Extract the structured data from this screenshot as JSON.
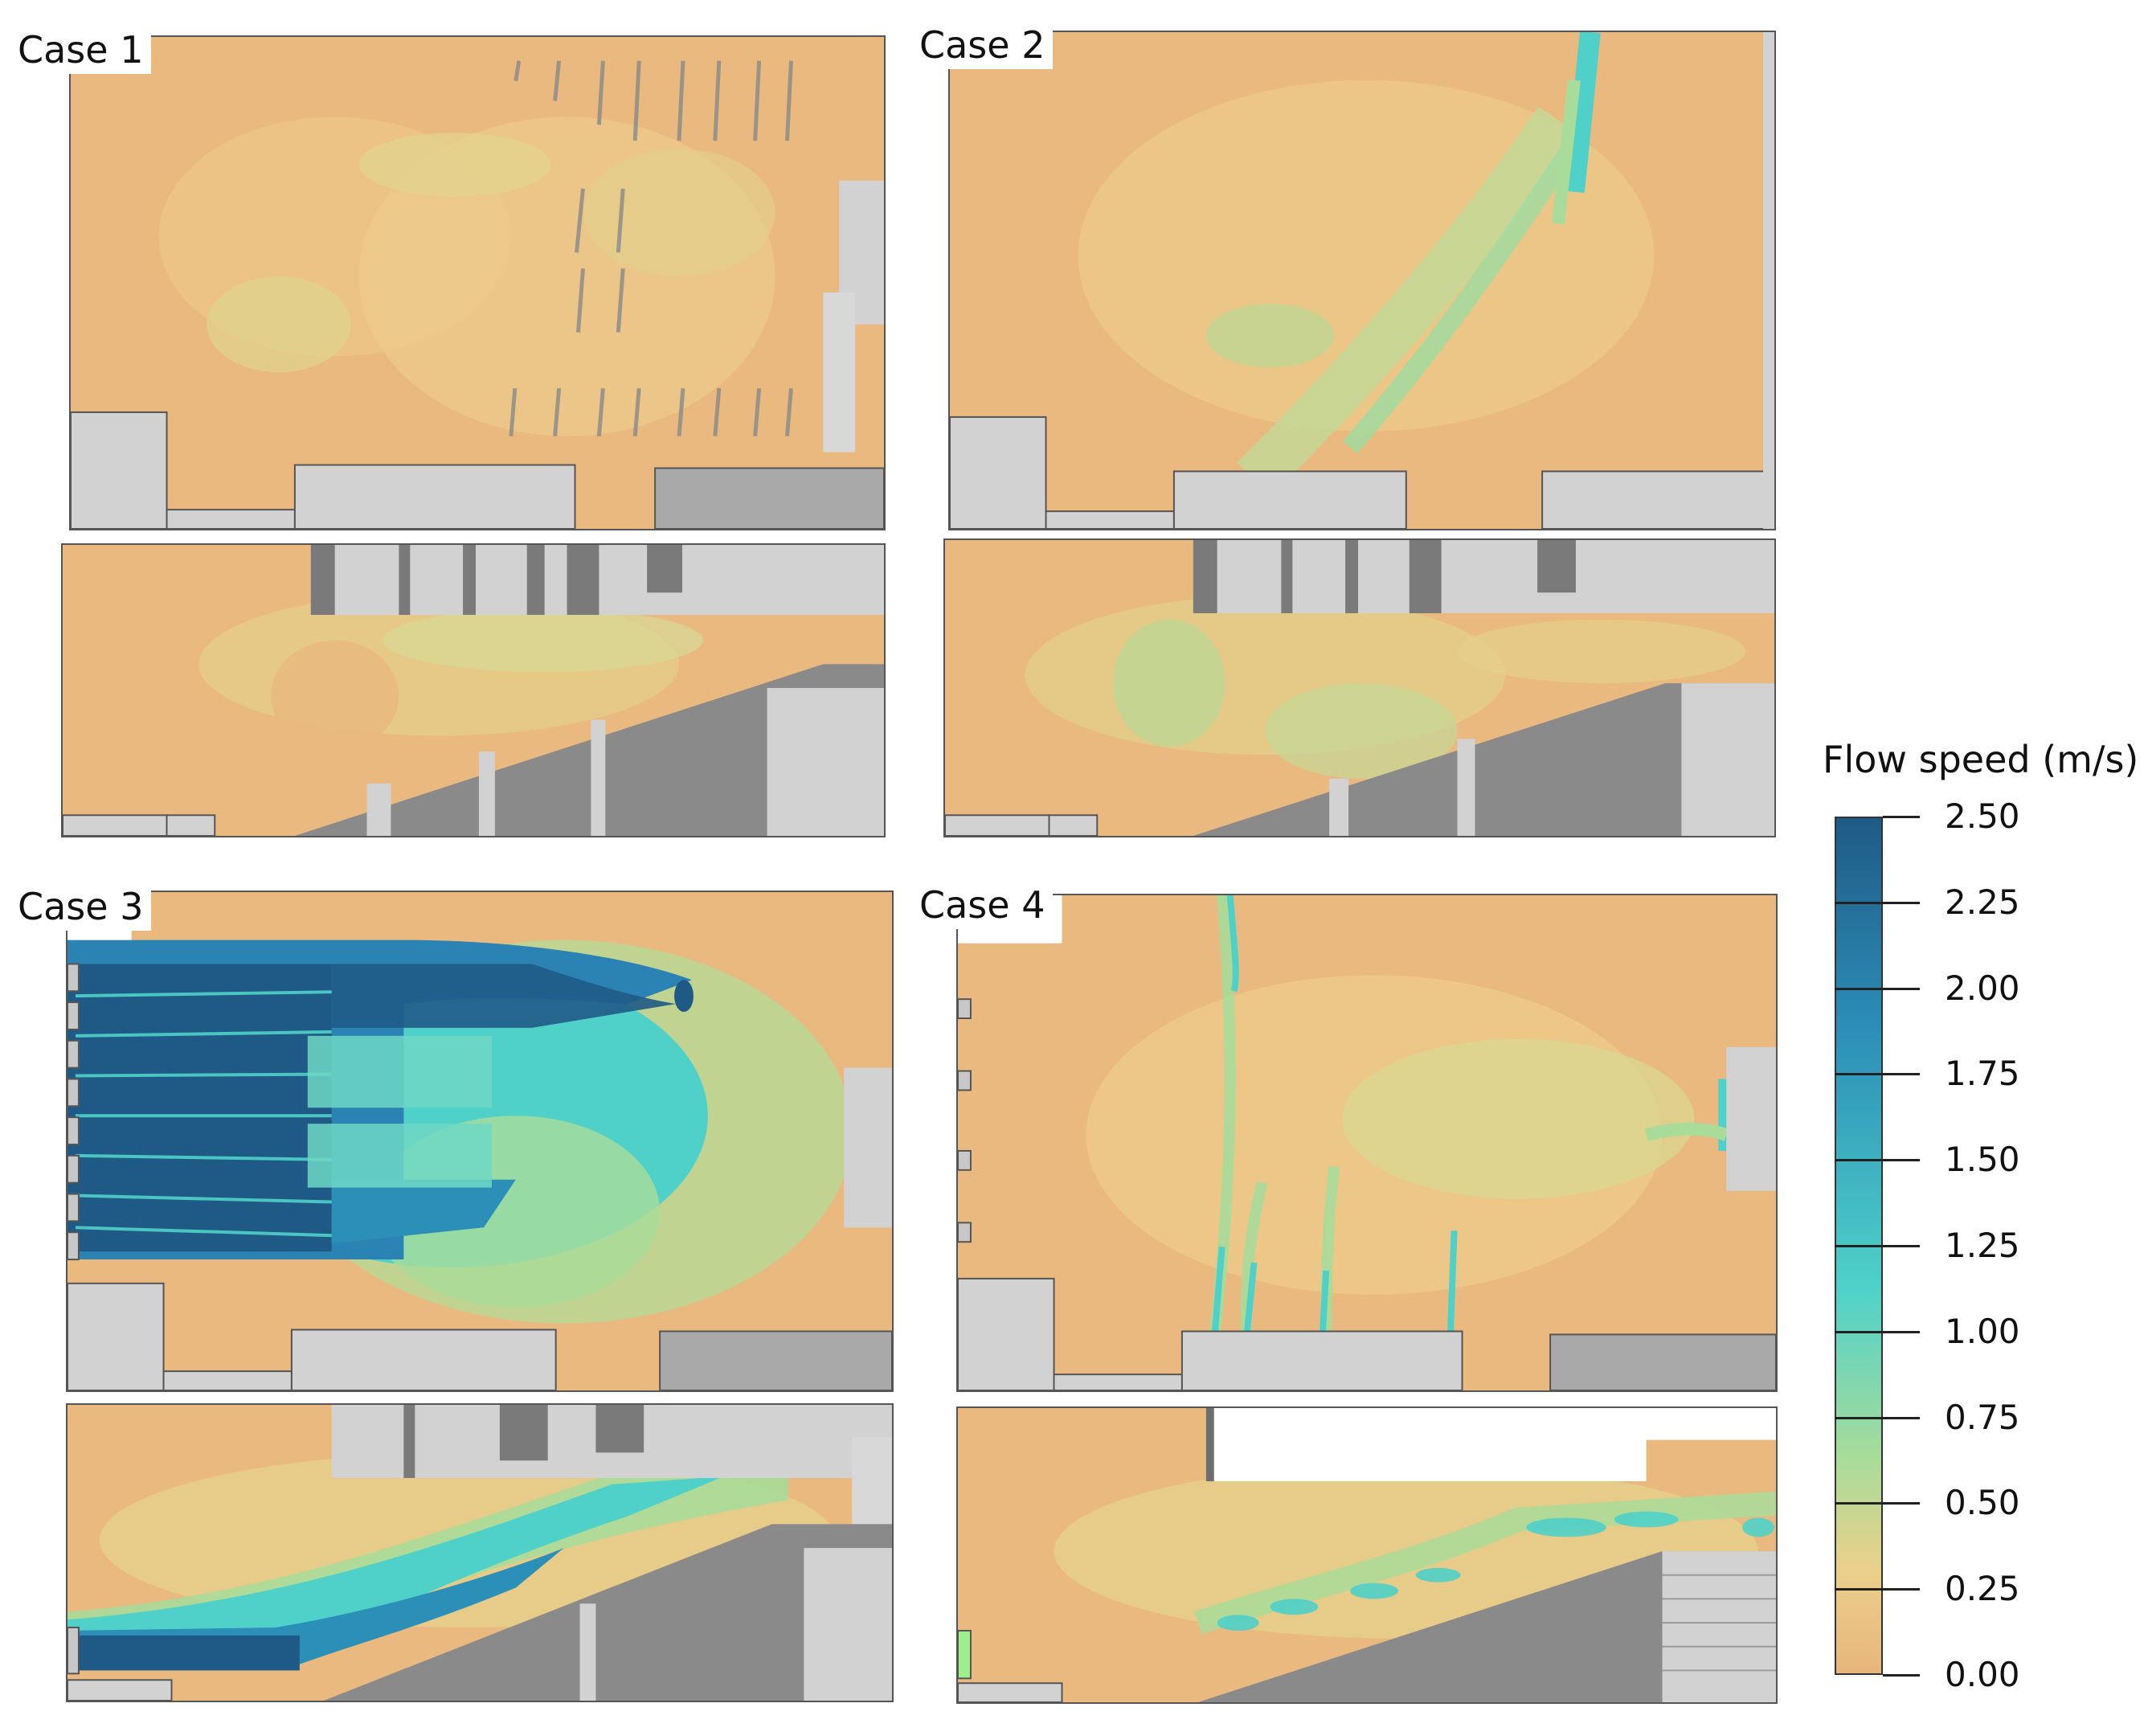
{
  "cases": [
    {
      "id": "case-1",
      "label": "Case 1"
    },
    {
      "id": "case-2",
      "label": "Case 2"
    },
    {
      "id": "case-3",
      "label": "Case 3"
    },
    {
      "id": "case-4",
      "label": "Case 4"
    }
  ],
  "legend": {
    "title": "Flow speed (m/s)",
    "ticks": [
      "2.50",
      "2.25",
      "2.00",
      "1.75",
      "1.50",
      "1.25",
      "1.00",
      "0.75",
      "0.50",
      "0.25",
      "0.00"
    ],
    "min": 0.0,
    "max": 2.5,
    "colors": {
      "low": "#e8b57c",
      "lowmid": "#ebd08a",
      "mid": "#a9dc9a",
      "midhigh": "#4fd1c9",
      "high": "#2c8fb8",
      "max": "#1f5a86"
    }
  },
  "colors": {
    "structure_light": "#d2d2d2",
    "structure_dark": "#8c8c8c",
    "seat_dark": "#6e6e6e",
    "border": "#555555"
  }
}
